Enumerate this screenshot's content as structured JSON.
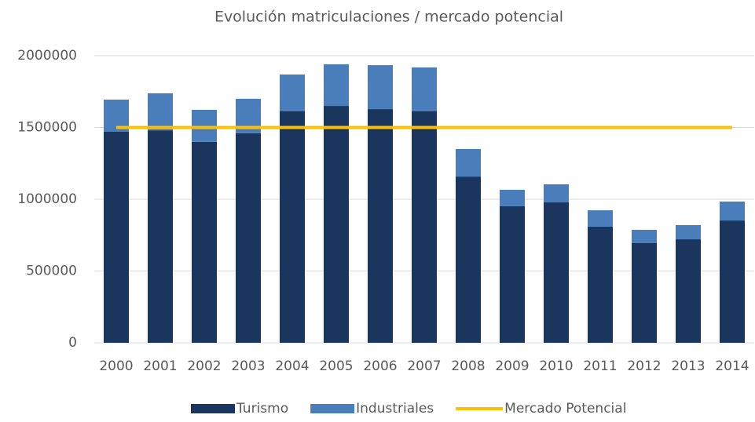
{
  "chart_data": {
    "type": "bar",
    "stacked": true,
    "title": "Evolución matriculaciones / mercado potencial",
    "categories": [
      "2000",
      "2001",
      "2002",
      "2003",
      "2004",
      "2005",
      "2006",
      "2007",
      "2008",
      "2009",
      "2010",
      "2011",
      "2012",
      "2013",
      "2014"
    ],
    "series": [
      {
        "name": "Turismo",
        "color": "#1a355e",
        "values": [
          1470000,
          1480000,
          1400000,
          1460000,
          1612000,
          1650000,
          1628000,
          1612000,
          1158000,
          951000,
          978000,
          809000,
          694000,
          721000,
          852000
        ]
      },
      {
        "name": "Industriales",
        "color": "#4a7ebb",
        "values": [
          224000,
          258000,
          223000,
          240000,
          257000,
          290000,
          306000,
          306000,
          192000,
          115000,
          126000,
          114000,
          93000,
          99000,
          132000
        ]
      },
      {
        "name": "Mercado Potencial",
        "color": "#ffc000",
        "type": "line",
        "values": [
          1500000,
          1500000,
          1500000,
          1500000,
          1500000,
          1500000,
          1500000,
          1500000,
          1500000,
          1500000,
          1500000,
          1500000,
          1500000,
          1500000,
          1500000
        ]
      }
    ],
    "ylim": [
      0,
      2000000
    ],
    "yticks": [
      0,
      500000,
      1000000,
      1500000,
      2000000
    ],
    "grid": true,
    "legend": "bottom"
  }
}
